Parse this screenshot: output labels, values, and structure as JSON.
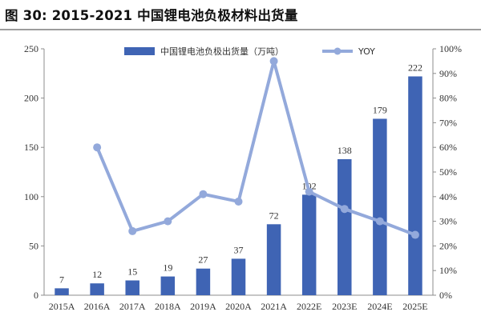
{
  "title": "图 30:  2015-2021 中国锂电池负极材料出货量",
  "chart_data": {
    "type": "bar",
    "categories": [
      "2015A",
      "2016A",
      "2017A",
      "2018A",
      "2019A",
      "2020A",
      "2021A",
      "2022E",
      "2023E",
      "2024E",
      "2025E"
    ],
    "series": [
      {
        "name": "中国锂电池负极出货量（万吨）",
        "type": "bar",
        "axis": "left",
        "color": "#3f64b4",
        "values": [
          7,
          12,
          15,
          19,
          27,
          37,
          72,
          102,
          138,
          179,
          222
        ],
        "labels": [
          "7",
          "12",
          "15",
          "19",
          "27",
          "37",
          "72",
          "102",
          "138",
          "179",
          "222"
        ]
      },
      {
        "name": "YOY",
        "type": "line",
        "axis": "right",
        "color": "#93a9db",
        "values": [
          null,
          0.6,
          0.26,
          0.3,
          0.41,
          0.38,
          0.95,
          0.42,
          0.35,
          0.3,
          0.245
        ]
      }
    ],
    "y_left": {
      "min": 0,
      "max": 250,
      "ticks": [
        "0",
        "50",
        "100",
        "150",
        "200",
        "250"
      ]
    },
    "y_right": {
      "min": 0,
      "max": 1,
      "ticks": [
        "0%",
        "10%",
        "20%",
        "30%",
        "40%",
        "50%",
        "60%",
        "70%",
        "80%",
        "90%",
        "100%"
      ]
    },
    "legend_position": "top",
    "grid": false
  }
}
